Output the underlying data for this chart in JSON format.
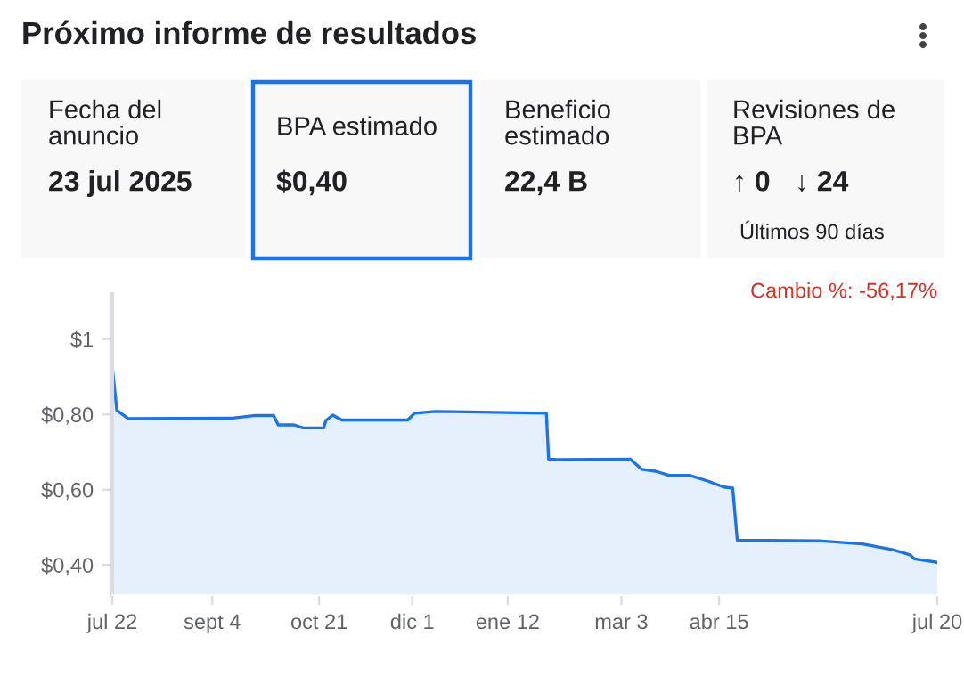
{
  "chart_data": [
    {
      "type": "other",
      "title": "Próximo informe de resultados",
      "annotations": [
        "Fecha del\nanuncio",
        "23 jul 2025",
        "BPA estimado",
        "$0,40",
        "Beneficio\nestimado",
        "22,4 B",
        "Revisiones de\nBPA",
        "↑ 0",
        "↓ 24",
        "Últimos 90 días"
      ]
    },
    {
      "type": "area",
      "x": [
        "2024-07-22",
        "2024-07-24",
        "2024-07-29",
        "2024-09-13",
        "2024-09-23",
        "2024-10-01",
        "2024-10-03",
        "2024-10-10",
        "2024-10-14",
        "2024-10-23",
        "2024-10-24",
        "2024-10-27",
        "2024-10-31",
        "2024-11-29",
        "2024-12-02",
        "2024-12-11",
        "2024-12-31",
        "2025-01-29",
        "2025-01-30",
        "2025-02-03",
        "2025-03-07",
        "2025-03-12",
        "2025-03-18",
        "2025-03-24",
        "2025-04-02",
        "2025-04-10",
        "2025-04-17",
        "2025-04-21",
        "2025-04-23",
        "2025-05-29",
        "2025-06-17",
        "2025-06-30",
        "2025-07-08",
        "2025-07-10",
        "2025-07-20"
      ],
      "series": [
        {
          "color": "#1a73e8",
          "values": [
            0.928,
            0.811,
            0.789,
            0.79,
            0.797,
            0.797,
            0.772,
            0.772,
            0.764,
            0.764,
            0.784,
            0.798,
            0.785,
            0.785,
            0.803,
            0.808,
            0.806,
            0.803,
            0.681,
            0.68,
            0.681,
            0.654,
            0.649,
            0.638,
            0.638,
            0.623,
            0.607,
            0.604,
            0.466,
            0.464,
            0.456,
            0.441,
            0.427,
            0.416,
            0.407
          ]
        }
      ],
      "xlim": [
        "2024-07-22",
        "2025-07-20"
      ],
      "xticks": [
        {
          "value": "2024-07-22",
          "label": "jul 22"
        },
        {
          "value": "2024-09-04",
          "label": "sept 4"
        },
        {
          "value": "2024-10-21",
          "label": "oct 21"
        },
        {
          "value": "2024-12-01",
          "label": "dic 1"
        },
        {
          "value": "2025-01-12",
          "label": "ene 12"
        },
        {
          "value": "2025-03-03",
          "label": "mar 3"
        },
        {
          "value": "2025-04-15",
          "label": "abr 15"
        },
        {
          "value": "2025-07-20",
          "label": "jul 20"
        }
      ],
      "ylim": [
        0.32,
        1.12
      ],
      "yticks": [
        {
          "value": 0.4,
          "label": "$0,40"
        },
        {
          "value": 0.6,
          "label": "$0,60"
        },
        {
          "value": 0.8,
          "label": "$0,80"
        },
        {
          "value": 1,
          "label": "$1"
        }
      ],
      "grid": false,
      "marker": "none",
      "line_style": "solid",
      "annotations": [
        "Cambio %: -56,17%"
      ]
    }
  ]
}
